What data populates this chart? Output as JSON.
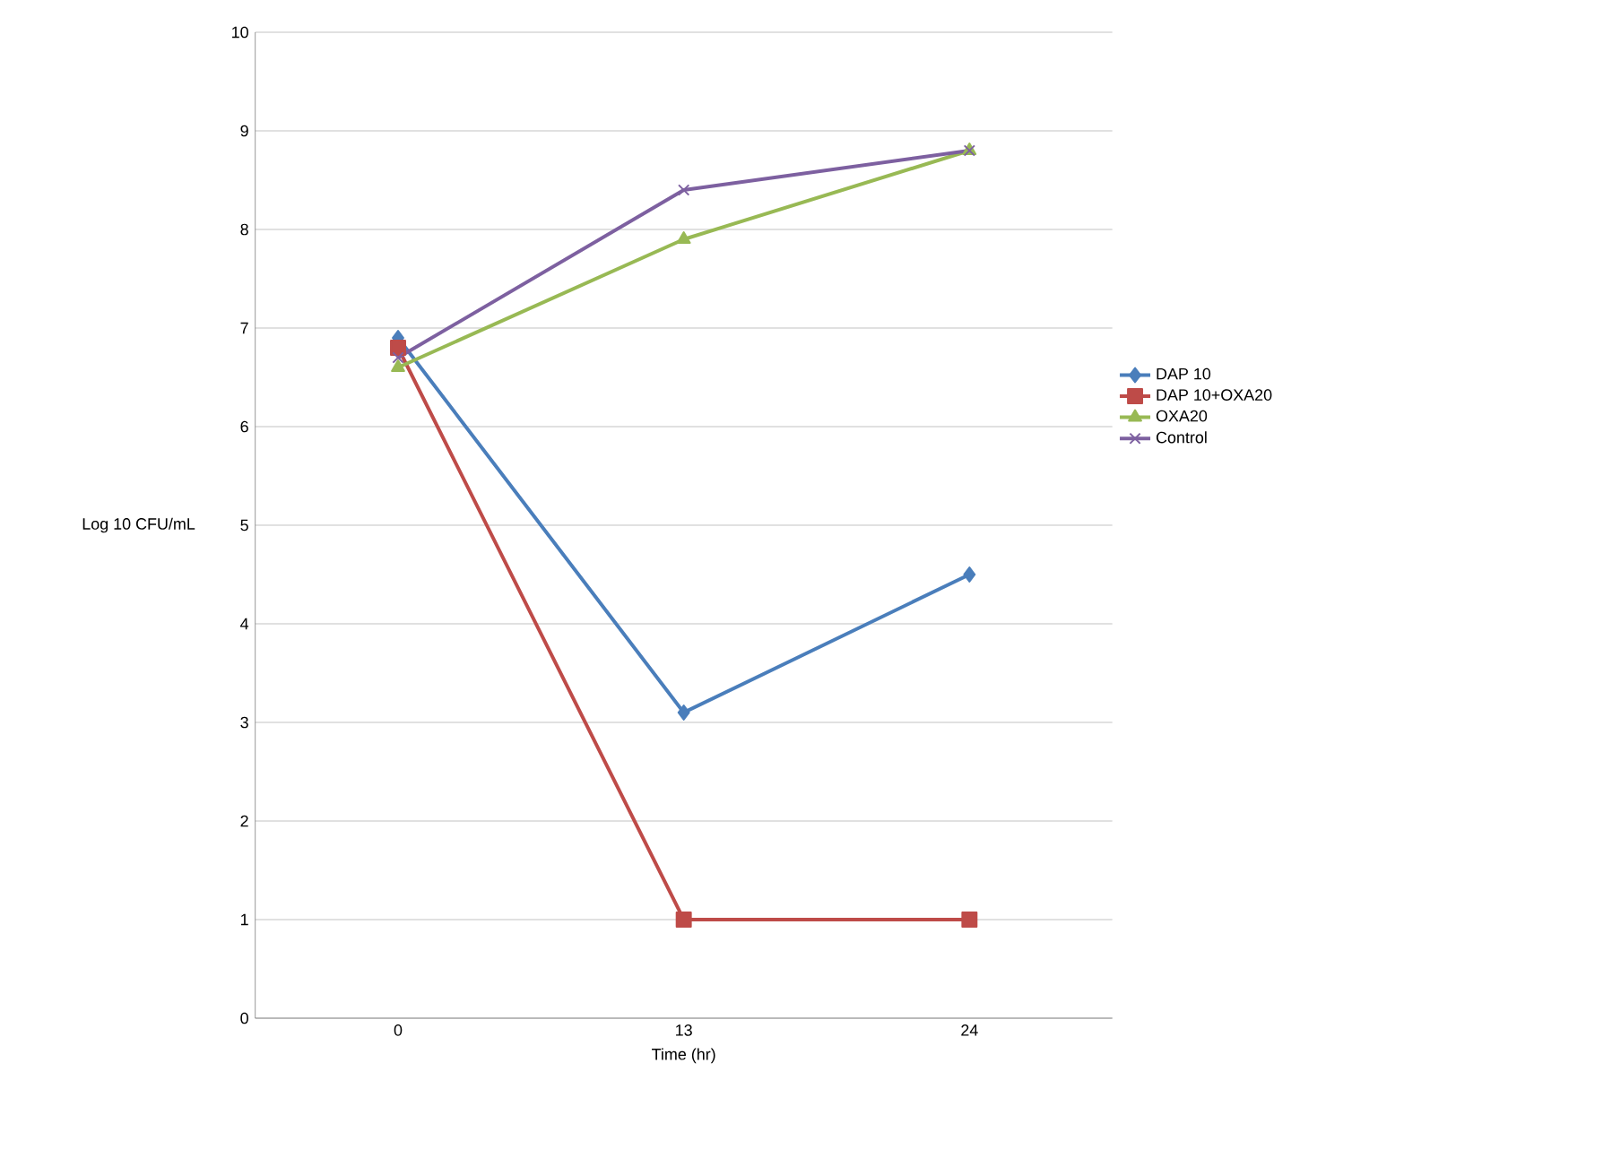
{
  "chart_data": {
    "type": "line",
    "xlabel": "Time (hr)",
    "ylabel": "Log 10 CFU/mL",
    "categories": [
      "0",
      "13",
      "24"
    ],
    "ylim": [
      0,
      10
    ],
    "yticks": [
      0,
      1,
      2,
      3,
      4,
      5,
      6,
      7,
      8,
      9,
      10
    ],
    "grid": "y",
    "legend": "right",
    "series": [
      {
        "name": "DAP 10",
        "color": "#4a7ebb",
        "marker": "diamond",
        "values": [
          6.9,
          3.1,
          4.5
        ]
      },
      {
        "name": "DAP 10+OXA20",
        "color": "#be4b48",
        "marker": "square",
        "values": [
          6.8,
          1.0,
          1.0
        ]
      },
      {
        "name": "OXA20",
        "color": "#98b954",
        "marker": "triangle",
        "values": [
          6.6,
          7.9,
          8.8
        ]
      },
      {
        "name": "Control",
        "color": "#7d60a0",
        "marker": "cross",
        "values": [
          6.7,
          8.4,
          8.8
        ]
      }
    ]
  }
}
